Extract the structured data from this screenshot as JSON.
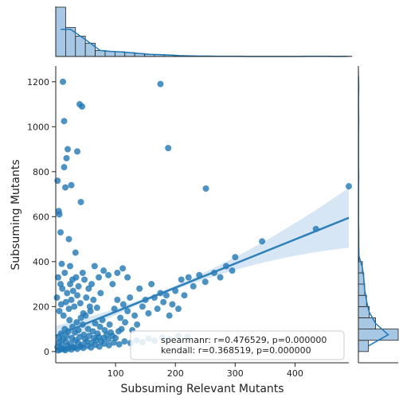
{
  "chart_data": {
    "type": "scatter",
    "xlabel": "Subsuming Relevant Mutants",
    "ylabel": "Subsuming Mutants",
    "xlim": [
      0,
      490
    ],
    "ylim": [
      -50,
      1270
    ],
    "xticks": [
      100,
      200,
      300,
      400
    ],
    "yticks": [
      0,
      200,
      400,
      600,
      800,
      1000,
      1200
    ],
    "grid": false,
    "legend": {
      "placement": "lower-right",
      "lines": [
        "spearmanr: r=0.476529, p=0.000000",
        "kendall: r=0.368519, p=0.000000"
      ]
    },
    "regression": {
      "x": [
        0,
        490
      ],
      "y": [
        70,
        595
      ],
      "ci_upper_at_end": 730,
      "ci_lower_at_end": 460
    },
    "points": [
      [
        3,
        20
      ],
      [
        5,
        40
      ],
      [
        6,
        60
      ],
      [
        8,
        15
      ],
      [
        9,
        80
      ],
      [
        10,
        30
      ],
      [
        12,
        55
      ],
      [
        14,
        10
      ],
      [
        15,
        100
      ],
      [
        17,
        45
      ],
      [
        18,
        70
      ],
      [
        20,
        25
      ],
      [
        21,
        90
      ],
      [
        23,
        140
      ],
      [
        25,
        35
      ],
      [
        27,
        60
      ],
      [
        28,
        110
      ],
      [
        30,
        20
      ],
      [
        32,
        85
      ],
      [
        33,
        50
      ],
      [
        35,
        130
      ],
      [
        37,
        40
      ],
      [
        38,
        95
      ],
      [
        40,
        65
      ],
      [
        42,
        150
      ],
      [
        44,
        30
      ],
      [
        45,
        120
      ],
      [
        47,
        75
      ],
      [
        49,
        55
      ],
      [
        50,
        160
      ],
      [
        52,
        45
      ],
      [
        54,
        100
      ],
      [
        56,
        70
      ],
      [
        58,
        180
      ],
      [
        60,
        40
      ],
      [
        62,
        90
      ],
      [
        64,
        60
      ],
      [
        66,
        125
      ],
      [
        68,
        50
      ],
      [
        70,
        80
      ],
      [
        72,
        65
      ],
      [
        74,
        110
      ],
      [
        76,
        45
      ],
      [
        78,
        140
      ],
      [
        80,
        60
      ],
      [
        82,
        95
      ],
      [
        85,
        75
      ],
      [
        88,
        55
      ],
      [
        90,
        120
      ],
      [
        92,
        85
      ],
      [
        95,
        70
      ],
      [
        98,
        190
      ],
      [
        100,
        60
      ],
      [
        103,
        230
      ],
      [
        105,
        90
      ],
      [
        108,
        150
      ],
      [
        110,
        100
      ],
      [
        113,
        210
      ],
      [
        116,
        130
      ],
      [
        120,
        180
      ],
      [
        124,
        240
      ],
      [
        128,
        95
      ],
      [
        132,
        160
      ],
      [
        136,
        120
      ],
      [
        140,
        280
      ],
      [
        145,
        200
      ],
      [
        150,
        230
      ],
      [
        155,
        170
      ],
      [
        160,
        300
      ],
      [
        165,
        240
      ],
      [
        170,
        190
      ],
      [
        175,
        260
      ],
      [
        180,
        220
      ],
      [
        185,
        250
      ],
      [
        190,
        160
      ],
      [
        195,
        210
      ],
      [
        200,
        270
      ],
      [
        205,
        190
      ],
      [
        210,
        320
      ],
      [
        215,
        250
      ],
      [
        222,
        330
      ],
      [
        230,
        290
      ],
      [
        240,
        340
      ],
      [
        250,
        310
      ],
      [
        265,
        350
      ],
      [
        275,
        330
      ],
      [
        285,
        380
      ],
      [
        295,
        360
      ],
      [
        300,
        420
      ],
      [
        345,
        490
      ],
      [
        435,
        545
      ],
      [
        490,
        735
      ],
      [
        2,
        240
      ],
      [
        4,
        330
      ],
      [
        6,
        610
      ],
      [
        8,
        530
      ],
      [
        10,
        390
      ],
      [
        14,
        820
      ],
      [
        16,
        730
      ],
      [
        18,
        860
      ],
      [
        20,
        900
      ],
      [
        22,
        500
      ],
      [
        24,
        380
      ],
      [
        28,
        320
      ],
      [
        33,
        440
      ],
      [
        36,
        890
      ],
      [
        40,
        1100
      ],
      [
        44,
        1090
      ],
      [
        12,
        1200
      ],
      [
        14,
        1025
      ],
      [
        26,
        740
      ],
      [
        42,
        665
      ],
      [
        5,
        625
      ],
      [
        3,
        760
      ],
      [
        175,
        1190
      ],
      [
        188,
        905
      ],
      [
        251,
        725
      ],
      [
        8,
        300
      ],
      [
        11,
        280
      ],
      [
        15,
        350
      ],
      [
        19,
        260
      ],
      [
        24,
        300
      ],
      [
        29,
        270
      ],
      [
        34,
        330
      ],
      [
        38,
        290
      ],
      [
        45,
        350
      ],
      [
        48,
        320
      ],
      [
        55,
        280
      ],
      [
        60,
        300
      ],
      [
        65,
        380
      ],
      [
        72,
        330
      ],
      [
        80,
        360
      ],
      [
        88,
        340
      ],
      [
        95,
        300
      ],
      [
        103,
        350
      ],
      [
        112,
        370
      ],
      [
        120,
        330
      ],
      [
        6,
        180
      ],
      [
        9,
        210
      ],
      [
        13,
        160
      ],
      [
        17,
        220
      ],
      [
        22,
        190
      ],
      [
        26,
        230
      ],
      [
        31,
        200
      ],
      [
        36,
        250
      ],
      [
        41,
        215
      ],
      [
        46,
        170
      ],
      [
        51,
        240
      ],
      [
        57,
        200
      ],
      [
        63,
        230
      ],
      [
        69,
        195
      ],
      [
        75,
        260
      ],
      [
        4,
        5
      ],
      [
        7,
        8
      ],
      [
        11,
        12
      ],
      [
        16,
        6
      ],
      [
        21,
        14
      ],
      [
        26,
        9
      ],
      [
        31,
        18
      ],
      [
        36,
        12
      ],
      [
        41,
        22
      ],
      [
        46,
        16
      ],
      [
        53,
        25
      ],
      [
        59,
        18
      ],
      [
        66,
        30
      ],
      [
        73,
        22
      ],
      [
        81,
        35
      ],
      [
        89,
        28
      ],
      [
        97,
        40
      ],
      [
        106,
        32
      ],
      [
        115,
        45
      ],
      [
        125,
        38
      ],
      [
        135,
        50
      ],
      [
        145,
        42
      ],
      [
        155,
        58
      ],
      [
        165,
        48
      ],
      [
        178,
        62
      ],
      [
        190,
        55
      ],
      [
        205,
        70
      ],
      [
        220,
        65
      ]
    ],
    "marginal_x": {
      "bin_width": 16.5,
      "counts": [
        230,
        135,
        95,
        62,
        28,
        24,
        22,
        18,
        14,
        10,
        9,
        7,
        4,
        3,
        2,
        2,
        1,
        1,
        1,
        0,
        0,
        0,
        0,
        0,
        0,
        1,
        1,
        1,
        0,
        1
      ]
    },
    "marginal_y": {
      "bin_width": 50,
      "counts": [
        55,
        220,
        95,
        60,
        45,
        35,
        30,
        22,
        3,
        2,
        2,
        1,
        1,
        1,
        1,
        2,
        1,
        1,
        1,
        1,
        2,
        1,
        1,
        2,
        1
      ]
    },
    "colors": {
      "points": "#1f77b4",
      "line": "#2c7fb8",
      "band": "#c6dbef",
      "bars": "#a6c8e4"
    }
  }
}
